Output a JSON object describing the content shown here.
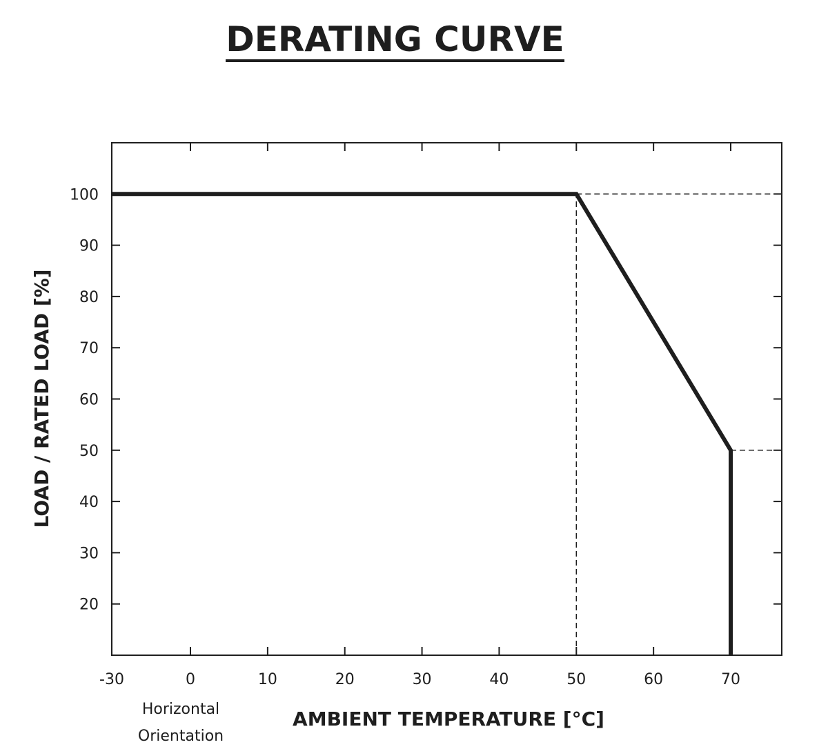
{
  "chart_data": {
    "type": "line",
    "title": "DERATING CURVE",
    "xlabel": "AMBIENT TEMPERATURE [°C]",
    "ylabel": "LOAD / RATED LOAD [%]",
    "xlim": [
      -30,
      76
    ],
    "ylim": [
      10,
      110
    ],
    "x_ticks": [
      -30,
      0,
      10,
      20,
      30,
      40,
      50,
      60,
      70
    ],
    "y_ticks": [
      20,
      30,
      40,
      50,
      60,
      70,
      80,
      90,
      100
    ],
    "x_tick_labels": [
      "-30",
      "0",
      "10",
      "20",
      "30",
      "40",
      "50",
      "60",
      "70"
    ],
    "y_tick_labels": [
      "20",
      "30",
      "40",
      "50",
      "60",
      "70",
      "80",
      "90",
      "100"
    ],
    "series": [
      {
        "x": [
          -30,
          50,
          70,
          70
        ],
        "y": [
          100,
          100,
          50,
          10
        ]
      }
    ],
    "reference_lines": [
      {
        "x": [
          50,
          76
        ],
        "y": [
          100,
          100
        ]
      },
      {
        "x": [
          70,
          76
        ],
        "y": [
          50,
          50
        ]
      },
      {
        "x": [
          50,
          50
        ],
        "y": [
          10,
          100
        ]
      }
    ],
    "annotation": "Horizontal Orientation",
    "grid": false,
    "line_color": "#1e1e1e"
  }
}
